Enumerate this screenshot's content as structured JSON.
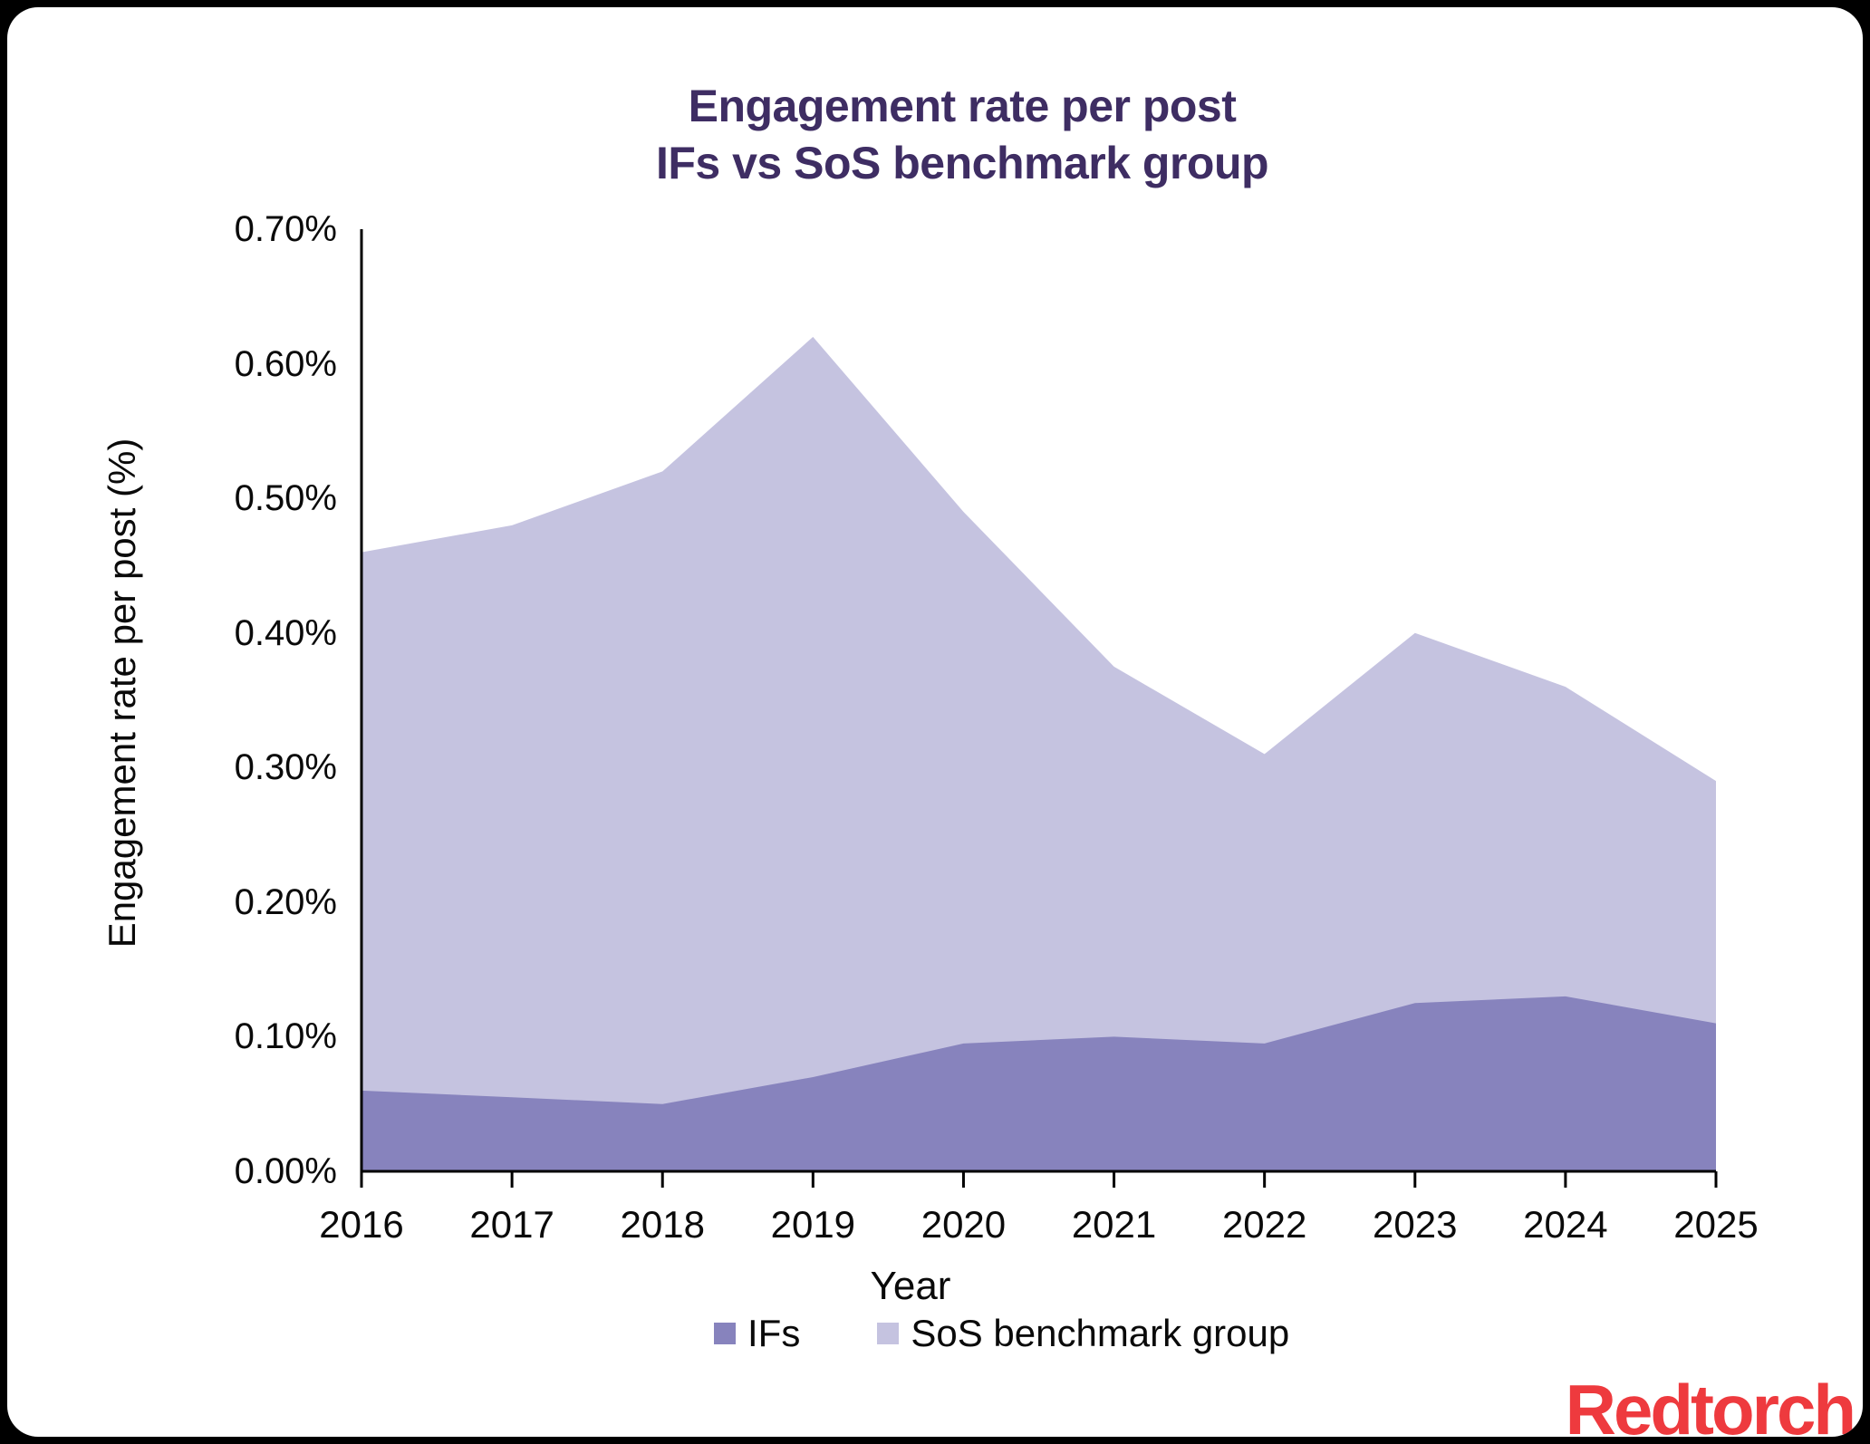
{
  "chart": {
    "title_line1": "Engagement rate per post",
    "title_line2": "IFs vs SoS benchmark group"
  },
  "chart_data": {
    "type": "area",
    "title": "Engagement rate per post — IFs vs SoS benchmark group",
    "x": [
      2016,
      2017,
      2018,
      2019,
      2020,
      2021,
      2022,
      2023,
      2024,
      2025
    ],
    "series": [
      {
        "name": "IFs",
        "color": "#8783bd",
        "values": [
          0.06,
          0.055,
          0.05,
          0.07,
          0.095,
          0.1,
          0.095,
          0.125,
          0.13,
          0.11
        ]
      },
      {
        "name": "SoS benchmark group",
        "color": "#c5c3e0",
        "values": [
          0.46,
          0.48,
          0.52,
          0.62,
          0.49,
          0.375,
          0.31,
          0.4,
          0.36,
          0.29
        ]
      }
    ],
    "xlabel": "Year",
    "ylabel": "Engagement rate per post (%)",
    "ylim": [
      0,
      0.7
    ],
    "y_tick_step": 0.1,
    "y_tick_format": "0.00%",
    "unit": "%",
    "grid": false,
    "legend_position": "bottom",
    "layering": "overlapping (not stacked); IFs drawn in front of SoS benchmark group"
  },
  "branding": {
    "logo_text": "Redtorch",
    "logo_color": "#ee3a3e"
  },
  "colors": {
    "title_text": "#3e2d63",
    "axis_text": "#0a0a0a",
    "axis_line": "#000000",
    "card_background": "#ffffff",
    "page_background": "#000000"
  }
}
